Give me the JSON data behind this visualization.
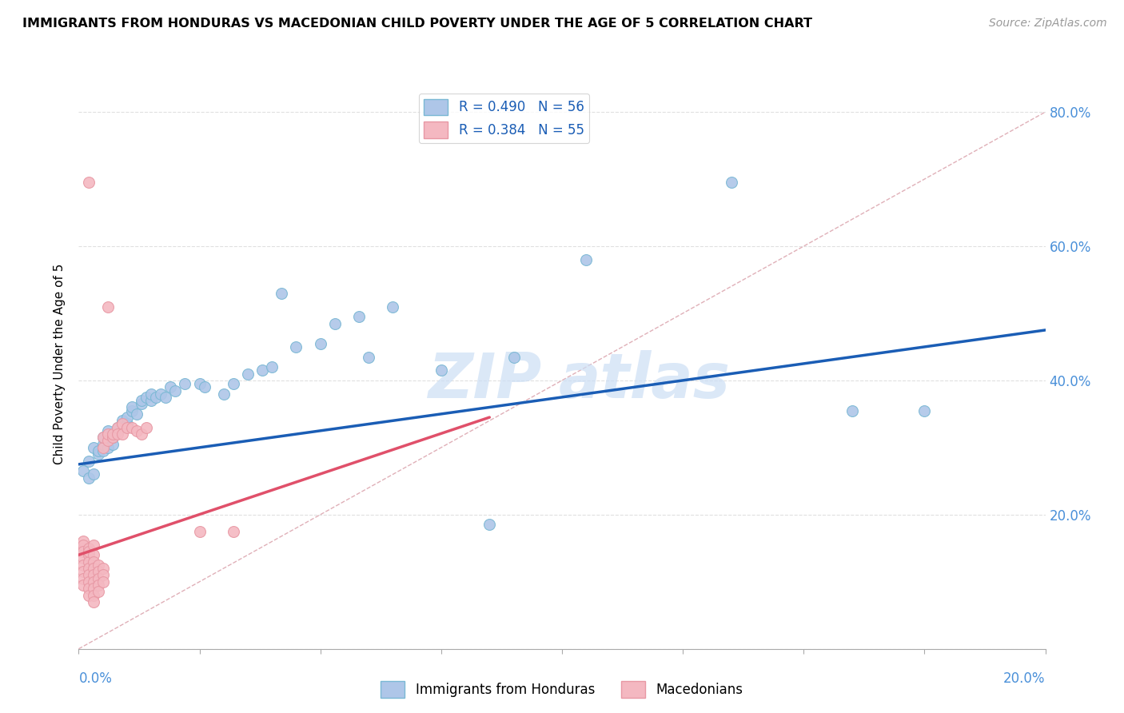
{
  "title": "IMMIGRANTS FROM HONDURAS VS MACEDONIAN CHILD POVERTY UNDER THE AGE OF 5 CORRELATION CHART",
  "source": "Source: ZipAtlas.com",
  "ylabel": "Child Poverty Under the Age of 5",
  "color_blue_fill": "#aec6e8",
  "color_blue_edge": "#7ab8d4",
  "color_pink_fill": "#f4b8c1",
  "color_pink_edge": "#e898a4",
  "color_blue_line": "#1a5db5",
  "color_pink_line": "#e0506a",
  "color_diag": "#d0c0c0",
  "color_grid": "#e0e0e0",
  "color_right_axis": "#4a90d9",
  "watermark_color": "#ccdff5",
  "blue_scatter": [
    [
      0.001,
      0.265
    ],
    [
      0.002,
      0.255
    ],
    [
      0.002,
      0.28
    ],
    [
      0.003,
      0.26
    ],
    [
      0.003,
      0.3
    ],
    [
      0.004,
      0.29
    ],
    [
      0.004,
      0.295
    ],
    [
      0.005,
      0.295
    ],
    [
      0.005,
      0.305
    ],
    [
      0.005,
      0.315
    ],
    [
      0.006,
      0.3
    ],
    [
      0.006,
      0.325
    ],
    [
      0.007,
      0.305
    ],
    [
      0.007,
      0.315
    ],
    [
      0.007,
      0.32
    ],
    [
      0.008,
      0.325
    ],
    [
      0.008,
      0.33
    ],
    [
      0.009,
      0.335
    ],
    [
      0.009,
      0.34
    ],
    [
      0.01,
      0.335
    ],
    [
      0.01,
      0.345
    ],
    [
      0.011,
      0.355
    ],
    [
      0.011,
      0.36
    ],
    [
      0.012,
      0.35
    ],
    [
      0.013,
      0.365
    ],
    [
      0.013,
      0.37
    ],
    [
      0.014,
      0.375
    ],
    [
      0.015,
      0.37
    ],
    [
      0.015,
      0.38
    ],
    [
      0.016,
      0.375
    ],
    [
      0.017,
      0.38
    ],
    [
      0.018,
      0.375
    ],
    [
      0.019,
      0.39
    ],
    [
      0.02,
      0.385
    ],
    [
      0.022,
      0.395
    ],
    [
      0.025,
      0.395
    ],
    [
      0.026,
      0.39
    ],
    [
      0.03,
      0.38
    ],
    [
      0.032,
      0.395
    ],
    [
      0.035,
      0.41
    ],
    [
      0.038,
      0.415
    ],
    [
      0.04,
      0.42
    ],
    [
      0.042,
      0.53
    ],
    [
      0.045,
      0.45
    ],
    [
      0.05,
      0.455
    ],
    [
      0.053,
      0.485
    ],
    [
      0.058,
      0.495
    ],
    [
      0.06,
      0.435
    ],
    [
      0.065,
      0.51
    ],
    [
      0.075,
      0.415
    ],
    [
      0.085,
      0.185
    ],
    [
      0.09,
      0.435
    ],
    [
      0.105,
      0.58
    ],
    [
      0.135,
      0.695
    ],
    [
      0.16,
      0.355
    ],
    [
      0.175,
      0.355
    ]
  ],
  "pink_scatter": [
    [
      0.001,
      0.145
    ],
    [
      0.001,
      0.15
    ],
    [
      0.001,
      0.16
    ],
    [
      0.001,
      0.155
    ],
    [
      0.001,
      0.145
    ],
    [
      0.001,
      0.135
    ],
    [
      0.001,
      0.125
    ],
    [
      0.001,
      0.115
    ],
    [
      0.001,
      0.105
    ],
    [
      0.001,
      0.095
    ],
    [
      0.002,
      0.15
    ],
    [
      0.002,
      0.14
    ],
    [
      0.002,
      0.13
    ],
    [
      0.002,
      0.12
    ],
    [
      0.002,
      0.11
    ],
    [
      0.002,
      0.1
    ],
    [
      0.002,
      0.09
    ],
    [
      0.002,
      0.08
    ],
    [
      0.002,
      0.145
    ],
    [
      0.003,
      0.155
    ],
    [
      0.003,
      0.14
    ],
    [
      0.003,
      0.13
    ],
    [
      0.003,
      0.12
    ],
    [
      0.003,
      0.11
    ],
    [
      0.003,
      0.1
    ],
    [
      0.003,
      0.09
    ],
    [
      0.003,
      0.08
    ],
    [
      0.003,
      0.07
    ],
    [
      0.004,
      0.125
    ],
    [
      0.004,
      0.115
    ],
    [
      0.004,
      0.105
    ],
    [
      0.004,
      0.095
    ],
    [
      0.004,
      0.085
    ],
    [
      0.005,
      0.12
    ],
    [
      0.005,
      0.11
    ],
    [
      0.005,
      0.1
    ],
    [
      0.005,
      0.3
    ],
    [
      0.005,
      0.315
    ],
    [
      0.006,
      0.31
    ],
    [
      0.006,
      0.32
    ],
    [
      0.007,
      0.315
    ],
    [
      0.007,
      0.32
    ],
    [
      0.008,
      0.33
    ],
    [
      0.008,
      0.32
    ],
    [
      0.009,
      0.335
    ],
    [
      0.009,
      0.32
    ],
    [
      0.01,
      0.33
    ],
    [
      0.011,
      0.33
    ],
    [
      0.012,
      0.325
    ],
    [
      0.013,
      0.32
    ],
    [
      0.014,
      0.33
    ],
    [
      0.025,
      0.175
    ],
    [
      0.032,
      0.175
    ],
    [
      0.002,
      0.695
    ],
    [
      0.006,
      0.51
    ]
  ],
  "blue_line": {
    "x0": 0.0,
    "y0": 0.275,
    "x1": 0.2,
    "y1": 0.475
  },
  "pink_line": {
    "x0": 0.0,
    "y0": 0.14,
    "x1": 0.085,
    "y1": 0.345
  },
  "diag_line": {
    "x0": 0.0,
    "y0": 0.0,
    "x1": 0.2,
    "y1": 0.8
  },
  "xlim": [
    0.0,
    0.2
  ],
  "ylim": [
    0.0,
    0.85
  ],
  "ytick_positions": [
    0.0,
    0.2,
    0.4,
    0.6,
    0.8
  ],
  "ytick_labels_right": [
    "",
    "20.0%",
    "40.0%",
    "60.0%",
    "80.0%"
  ],
  "xtick_positions": [
    0.0,
    0.025,
    0.05,
    0.075,
    0.1,
    0.125,
    0.15,
    0.175,
    0.2
  ]
}
